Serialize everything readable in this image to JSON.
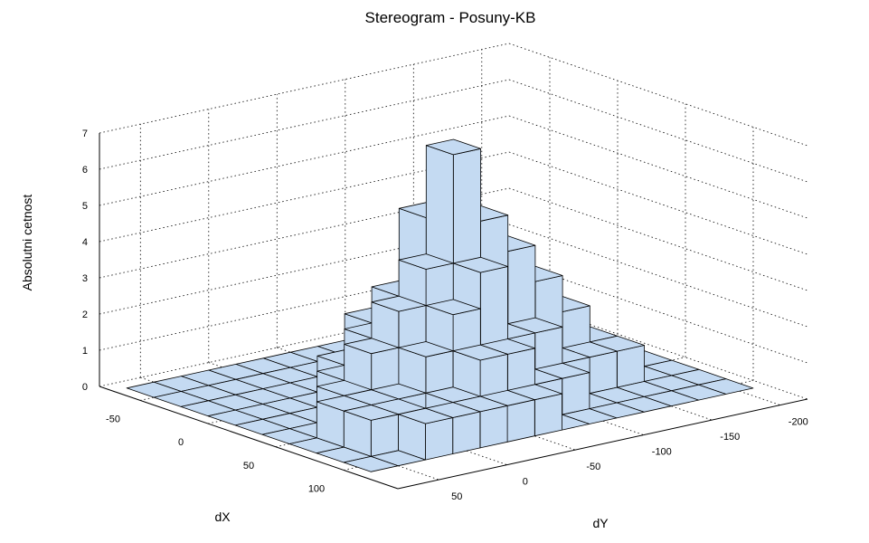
{
  "chart_data": {
    "type": "bar3",
    "title": "Stereogram - Posuny-KB",
    "xlabel": "dX",
    "ylabel": "dY",
    "zlabel": "Absolutni cetnost",
    "x_ticks": [
      "-50",
      "0",
      "50",
      "100"
    ],
    "y_ticks": [
      "50",
      "0",
      "-50",
      "-100",
      "-150",
      "-200"
    ],
    "z_ticks": [
      "0",
      "1",
      "2",
      "3",
      "4",
      "5",
      "6",
      "7"
    ],
    "xlim": [
      -80,
      140
    ],
    "ylim": [
      80,
      -220
    ],
    "zlim": [
      0,
      7
    ],
    "x_centers": [
      -60,
      -40,
      -20,
      0,
      20,
      40,
      60,
      80,
      100
    ],
    "y_centers": [
      60,
      40,
      20,
      0,
      -20,
      -40,
      -60,
      -80,
      -100,
      -120,
      -140,
      -160,
      -180,
      -200
    ],
    "values": [
      [
        0,
        0,
        0,
        0,
        0,
        0,
        0,
        0,
        0,
        0,
        0,
        0,
        0,
        0
      ],
      [
        0,
        0,
        0,
        0,
        0,
        0,
        0,
        0,
        0,
        0,
        0,
        0,
        0,
        0
      ],
      [
        0,
        0,
        0,
        0,
        0,
        0,
        0,
        0,
        0,
        0,
        0,
        0,
        0,
        0
      ],
      [
        0,
        0,
        0,
        0,
        1,
        2,
        2,
        1,
        1,
        0,
        0,
        0,
        0,
        0
      ],
      [
        0,
        0,
        0,
        1,
        2,
        3,
        5,
        5,
        4,
        2,
        1,
        1,
        0,
        0
      ],
      [
        0,
        0,
        1,
        2,
        3,
        4,
        7,
        5,
        4,
        3,
        2,
        1,
        0,
        0
      ],
      [
        0,
        1,
        1,
        1,
        2,
        3,
        4,
        2,
        2,
        1,
        1,
        1,
        0,
        0
      ],
      [
        0,
        1,
        1,
        0,
        1,
        2,
        2,
        1,
        1,
        0,
        0,
        0,
        0,
        0
      ],
      [
        0,
        0,
        1,
        1,
        1,
        1,
        1,
        0,
        0,
        0,
        0,
        0,
        0,
        0
      ]
    ],
    "grid": true,
    "bar_color": "#c4daf2",
    "edge_color": "#000000"
  }
}
